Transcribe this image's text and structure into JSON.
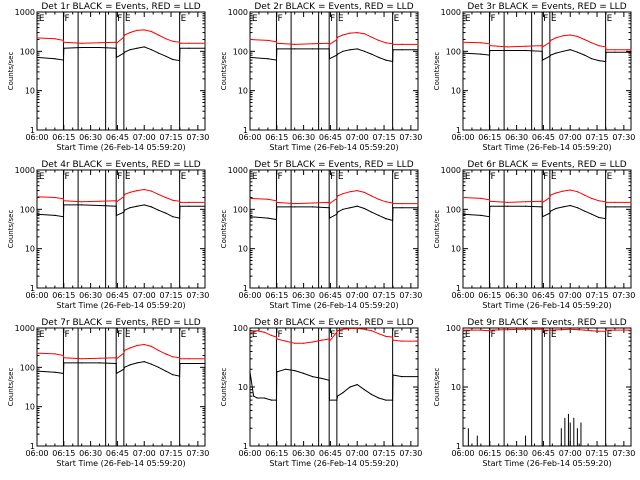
{
  "page": {
    "background": "#ffffff",
    "event_color": "#000000",
    "lld_color": "#ff0000"
  },
  "common": {
    "xlabel": "Start Time (26-Feb-14 05:59:20)",
    "ylabel": "Counts/sec",
    "x_ticks": [
      "06:00",
      "06:15",
      "06:30",
      "06:45",
      "07:00",
      "07:15",
      "07:30"
    ],
    "x_tick_minutes": [
      0,
      15,
      30,
      45,
      60,
      75,
      90
    ],
    "y_ticks": [
      "1",
      "10",
      "100",
      "1000"
    ],
    "marker_labels": [
      {
        "minute": 0.5,
        "text": "E"
      },
      {
        "minute": 14.8,
        "text": "F"
      },
      {
        "minute": 44.3,
        "text": "F"
      },
      {
        "minute": 48.6,
        "text": "E"
      },
      {
        "minute": 79.8,
        "text": "E"
      }
    ],
    "vlines_minutes": [
      14.8,
      23.0,
      38.4,
      44.3,
      48.6,
      79.8
    ]
  },
  "chart_data": [
    {
      "type": "line",
      "title": "Det 1r BLACK = Events, RED = LLD",
      "xlabel": "Start Time (26-Feb-14 05:59:20)",
      "ylabel": "Counts/sec",
      "ylim": [
        1,
        1000
      ],
      "y_scale": "log",
      "x": [
        0,
        10,
        14.8,
        15,
        25,
        35,
        44.3,
        44.5,
        48.6,
        49,
        52,
        56,
        60,
        64,
        68,
        72,
        76,
        79.8,
        80,
        85,
        94
      ],
      "series": [
        {
          "name": "Events",
          "color": "#000000",
          "values": [
            70,
            65,
            60,
            120,
            125,
            125,
            120,
            70,
            90,
            95,
            110,
            120,
            130,
            110,
            90,
            75,
            62,
            58,
            120,
            120,
            120
          ]
        },
        {
          "name": "LLD",
          "color": "#ff0000",
          "values": [
            220,
            210,
            190,
            170,
            160,
            165,
            170,
            160,
            230,
            260,
            300,
            340,
            350,
            320,
            260,
            210,
            180,
            170,
            160,
            160,
            160
          ]
        }
      ]
    },
    {
      "type": "line",
      "title": "Det 2r BLACK = Events, RED = LLD",
      "xlabel": "Start Time (26-Feb-14 05:59:20)",
      "ylabel": "Counts/sec",
      "ylim": [
        1,
        1000
      ],
      "y_scale": "log",
      "x": [
        0,
        10,
        14.8,
        15,
        25,
        35,
        44.3,
        44.5,
        48.6,
        49,
        52,
        56,
        60,
        64,
        68,
        72,
        76,
        79.8,
        80,
        85,
        94
      ],
      "series": [
        {
          "name": "Events",
          "color": "#000000",
          "values": [
            70,
            65,
            60,
            115,
            115,
            115,
            115,
            65,
            80,
            85,
            100,
            110,
            115,
            100,
            85,
            70,
            60,
            55,
            110,
            110,
            110
          ]
        },
        {
          "name": "LLD",
          "color": "#ff0000",
          "values": [
            200,
            190,
            175,
            160,
            150,
            155,
            160,
            150,
            200,
            230,
            260,
            290,
            300,
            280,
            230,
            190,
            165,
            155,
            150,
            150,
            150
          ]
        }
      ]
    },
    {
      "type": "line",
      "title": "Det 3r BLACK = Events, RED = LLD",
      "xlabel": "Start Time (26-Feb-14 05:59:20)",
      "ylabel": "Counts/sec",
      "ylim": [
        1,
        1000
      ],
      "y_scale": "log",
      "x": [
        0,
        10,
        14.8,
        15,
        25,
        35,
        44.3,
        44.5,
        48.6,
        49,
        52,
        56,
        60,
        64,
        68,
        72,
        76,
        79.8,
        80,
        85,
        94
      ],
      "series": [
        {
          "name": "Events",
          "color": "#000000",
          "values": [
            90,
            85,
            80,
            105,
            105,
            105,
            100,
            60,
            75,
            80,
            90,
            100,
            110,
            95,
            80,
            65,
            58,
            55,
            95,
            95,
            95
          ]
        },
        {
          "name": "LLD",
          "color": "#ff0000",
          "values": [
            170,
            165,
            155,
            140,
            130,
            135,
            140,
            130,
            170,
            190,
            220,
            250,
            260,
            240,
            200,
            165,
            140,
            130,
            110,
            110,
            110
          ]
        }
      ]
    },
    {
      "type": "line",
      "title": "Det 4r BLACK = Events, RED = LLD",
      "xlabel": "Start Time (26-Feb-14 05:59:20)",
      "ylabel": "Counts/sec",
      "ylim": [
        1,
        1000
      ],
      "y_scale": "log",
      "x": [
        0,
        10,
        14.8,
        15,
        25,
        35,
        44.3,
        44.5,
        48.6,
        49,
        52,
        56,
        60,
        64,
        68,
        72,
        76,
        79.8,
        80,
        85,
        94
      ],
      "series": [
        {
          "name": "Events",
          "color": "#000000",
          "values": [
            75,
            70,
            65,
            130,
            130,
            125,
            120,
            70,
            85,
            95,
            110,
            120,
            130,
            115,
            95,
            80,
            65,
            60,
            120,
            120,
            120
          ]
        },
        {
          "name": "LLD",
          "color": "#ff0000",
          "values": [
            210,
            200,
            185,
            165,
            155,
            160,
            165,
            155,
            210,
            240,
            270,
            300,
            320,
            290,
            240,
            200,
            170,
            160,
            150,
            150,
            150
          ]
        }
      ]
    },
    {
      "type": "line",
      "title": "Det 5r BLACK = Events, RED = LLD",
      "xlabel": "Start Time (26-Feb-14 05:59:20)",
      "ylabel": "Counts/sec",
      "ylim": [
        1,
        1000
      ],
      "y_scale": "log",
      "x": [
        0,
        10,
        14.8,
        15,
        25,
        35,
        44.3,
        44.5,
        48.6,
        49,
        52,
        56,
        60,
        64,
        68,
        72,
        76,
        79.8,
        80,
        85,
        94
      ],
      "series": [
        {
          "name": "Events",
          "color": "#000000",
          "values": [
            65,
            60,
            55,
            115,
            115,
            115,
            110,
            60,
            75,
            85,
            100,
            110,
            120,
            105,
            85,
            70,
            58,
            52,
            110,
            110,
            110
          ]
        },
        {
          "name": "LLD",
          "color": "#ff0000",
          "values": [
            190,
            180,
            165,
            150,
            140,
            145,
            150,
            140,
            190,
            220,
            250,
            280,
            300,
            270,
            220,
            180,
            155,
            145,
            140,
            140,
            140
          ]
        }
      ]
    },
    {
      "type": "line",
      "title": "Det 6r BLACK = Events, RED = LLD",
      "xlabel": "Start Time (26-Feb-14 05:59:20)",
      "ylabel": "Counts/sec",
      "ylim": [
        1,
        1000
      ],
      "y_scale": "log",
      "x": [
        0,
        10,
        14.8,
        15,
        25,
        35,
        44.3,
        44.5,
        48.6,
        49,
        52,
        56,
        60,
        64,
        68,
        72,
        76,
        79.8,
        80,
        85,
        94
      ],
      "series": [
        {
          "name": "Events",
          "color": "#000000",
          "values": [
            75,
            70,
            65,
            120,
            120,
            120,
            115,
            65,
            80,
            90,
            105,
            115,
            125,
            110,
            90,
            75,
            62,
            58,
            115,
            115,
            115
          ]
        },
        {
          "name": "LLD",
          "color": "#ff0000",
          "values": [
            200,
            190,
            175,
            160,
            150,
            155,
            160,
            150,
            200,
            230,
            260,
            290,
            310,
            280,
            230,
            190,
            165,
            155,
            150,
            150,
            150
          ]
        }
      ]
    },
    {
      "type": "line",
      "title": "Det 7r BLACK = Events, RED = LLD",
      "xlabel": "Start Time (26-Feb-14 05:59:20)",
      "ylabel": "Counts/sec",
      "ylim": [
        1,
        1000
      ],
      "y_scale": "log",
      "x": [
        0,
        10,
        14.8,
        15,
        25,
        35,
        44.3,
        44.5,
        48.6,
        49,
        52,
        56,
        60,
        64,
        68,
        72,
        76,
        79.8,
        80,
        85,
        94
      ],
      "series": [
        {
          "name": "Events",
          "color": "#000000",
          "values": [
            80,
            75,
            70,
            130,
            130,
            130,
            125,
            70,
            90,
            100,
            115,
            130,
            140,
            120,
            100,
            80,
            65,
            60,
            125,
            125,
            125
          ]
        },
        {
          "name": "LLD",
          "color": "#ff0000",
          "values": [
            230,
            220,
            200,
            175,
            165,
            170,
            175,
            165,
            230,
            270,
            310,
            360,
            380,
            340,
            270,
            220,
            185,
            175,
            165,
            165,
            165
          ]
        }
      ]
    },
    {
      "type": "line",
      "title": "Det 8r BLACK = Events, RED = LLD",
      "xlabel": "Start Time (26-Feb-14 05:59:20)",
      "ylabel": "Counts/sec",
      "ylim": [
        1,
        100
      ],
      "y_scale": "log",
      "x": [
        0,
        2,
        4,
        8,
        12,
        14.8,
        15,
        20,
        25,
        30,
        35,
        40,
        44.3,
        44.5,
        48.6,
        49,
        52,
        56,
        60,
        64,
        68,
        72,
        76,
        79.8,
        80,
        85,
        94
      ],
      "series": [
        {
          "name": "Events",
          "color": "#000000",
          "values": [
            18,
            7,
            6.5,
            6.5,
            6,
            6,
            18,
            20,
            19,
            17,
            15,
            14,
            13,
            6,
            6,
            7,
            8,
            10,
            11,
            9,
            7.5,
            6.5,
            6,
            6,
            16,
            15,
            15
          ]
        },
        {
          "name": "LLD",
          "color": "#ff0000",
          "values": [
            85,
            85,
            90,
            85,
            75,
            70,
            65,
            60,
            55,
            55,
            58,
            62,
            65,
            60,
            85,
            90,
            95,
            98,
            98,
            95,
            90,
            80,
            72,
            70,
            62,
            60,
            60
          ]
        }
      ]
    },
    {
      "type": "line",
      "title": "Det 9r BLACK = Events, RED = LLD",
      "xlabel": "Start Time (26-Feb-14 05:59:20)",
      "ylabel": "Counts/sec",
      "ylim": [
        1,
        100
      ],
      "y_scale": "log",
      "x": [
        0,
        10,
        14.8,
        15,
        25,
        35,
        44.3,
        44.5,
        48.6,
        49,
        52,
        56,
        60,
        64,
        68,
        72,
        76,
        79.8,
        80,
        85,
        94
      ],
      "series": [
        {
          "name": "Events",
          "color": "#000000",
          "values": [
            1,
            1,
            1,
            1,
            1,
            1,
            1,
            1,
            1,
            1,
            1,
            1,
            1,
            1,
            1,
            1,
            1,
            1,
            1,
            1,
            1
          ],
          "spikes": [
            [
              3,
              2
            ],
            [
              8,
              1.5
            ],
            [
              35,
              1.5
            ],
            [
              55,
              2
            ],
            [
              57,
              3
            ],
            [
              59,
              3.5
            ],
            [
              60,
              2.5
            ],
            [
              62,
              3
            ],
            [
              64,
              2
            ],
            [
              66,
              2.5
            ]
          ]
        },
        {
          "name": "LLD",
          "color": "#ff0000",
          "values": [
            92,
            92,
            90,
            92,
            94,
            95,
            95,
            92,
            92,
            92,
            93,
            94,
            95,
            94,
            92,
            90,
            88,
            88,
            92,
            92,
            92
          ]
        }
      ]
    }
  ]
}
